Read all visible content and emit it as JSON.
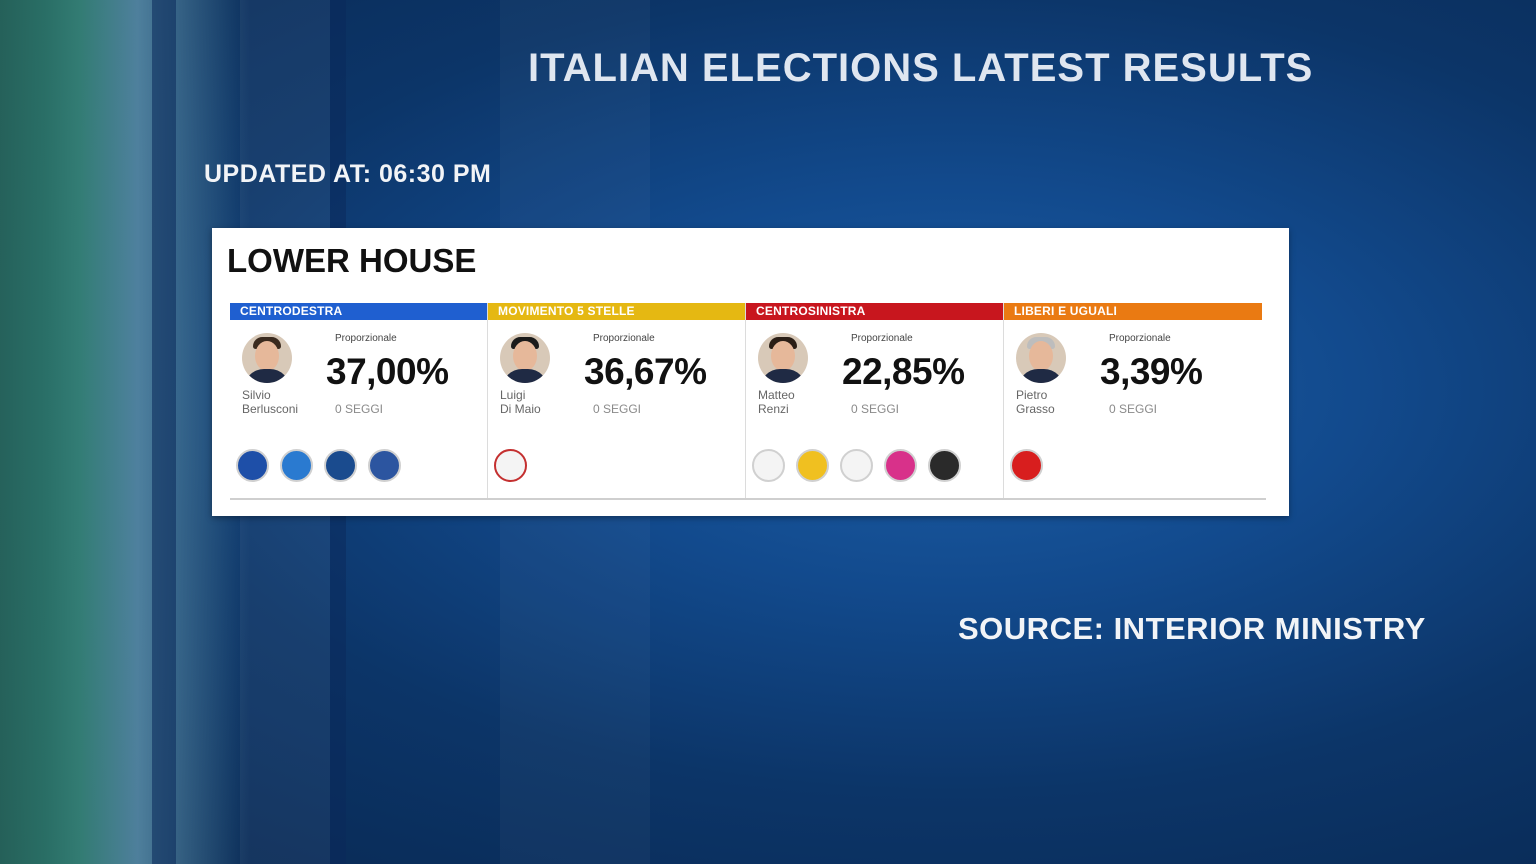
{
  "header": {
    "title": "ITALIAN ELECTIONS LATEST RESULTS",
    "updated": "UPDATED AT: 06:30 PM",
    "source": "SOURCE: INTERIOR MINISTRY"
  },
  "panel": {
    "title": "LOWER HOUSE",
    "cards": [
      {
        "coalition": "CENTRODESTRA",
        "color": "#1f5fd0",
        "leader_first": "Silvio",
        "leader_last": "Berlusconi",
        "prop_label": "Proporzionale",
        "percent": "37,00%",
        "seats": "0 SEGGI",
        "logos": [
          {
            "icon": "lega-salvini-logo-icon",
            "color": "#1e4fa8"
          },
          {
            "icon": "forza-italia-logo-icon",
            "color": "#2a7ad0"
          },
          {
            "icon": "fratelli-italia-logo-icon",
            "color": "#1a4b8e"
          },
          {
            "icon": "noi-con-italia-logo-icon",
            "color": "#2c55a0"
          }
        ]
      },
      {
        "coalition": "MOVIMENTO 5 STELLE",
        "color": "#e5b812",
        "leader_first": "Luigi",
        "leader_last": "Di Maio",
        "prop_label": "Proporzionale",
        "percent": "36,67%",
        "seats": "0 SEGGI",
        "logos": [
          {
            "icon": "movimento-5-stelle-logo-icon",
            "color": "#f4f4f4"
          }
        ]
      },
      {
        "coalition": "CENTROSINISTRA",
        "color": "#c8161e",
        "leader_first": "Matteo",
        "leader_last": "Renzi",
        "prop_label": "Proporzionale",
        "percent": "22,85%",
        "seats": "0 SEGGI",
        "logos": [
          {
            "icon": "pd-logo-icon",
            "color": "#f4f4f4"
          },
          {
            "icon": "piu-europa-logo-icon",
            "color": "#f0c020"
          },
          {
            "icon": "insieme-logo-icon",
            "color": "#f4f4f4"
          },
          {
            "icon": "civica-popolare-logo-icon",
            "color": "#d8318a"
          },
          {
            "icon": "svp-logo-icon",
            "color": "#2a2a2a"
          }
        ]
      },
      {
        "coalition": "LIBERI E UGUALI",
        "color": "#ea7a12",
        "leader_first": "Pietro",
        "leader_last": "Grasso",
        "prop_label": "Proporzionale",
        "percent": "3,39%",
        "seats": "0 SEGGI",
        "logos": [
          {
            "icon": "liberi-e-uguali-logo-icon",
            "color": "#d81e1e"
          }
        ]
      }
    ]
  }
}
